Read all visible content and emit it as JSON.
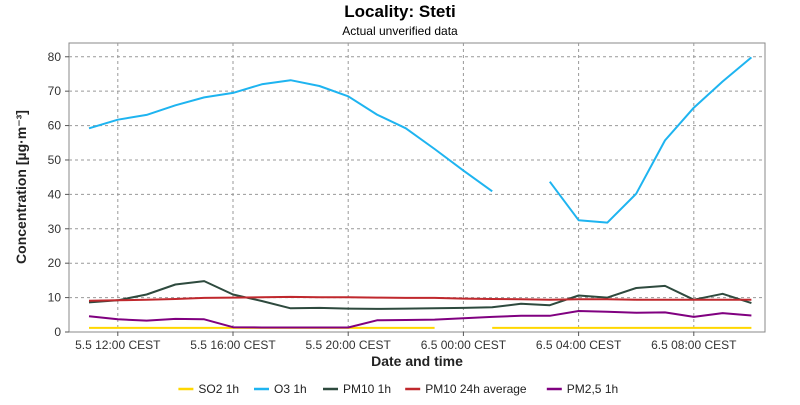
{
  "chart_data": {
    "type": "line",
    "title": "Locality: Steti",
    "subtitle": "Actual unverified data",
    "xlabel": "Date and time",
    "ylabel": "Concentration [µg·m⁻³]",
    "ylim": [
      0,
      84
    ],
    "yticks": [
      0,
      10,
      20,
      30,
      40,
      50,
      60,
      70,
      80
    ],
    "x": [
      "2024-05-05 11:00",
      "2024-05-05 12:00",
      "2024-05-05 13:00",
      "2024-05-05 14:00",
      "2024-05-05 15:00",
      "2024-05-05 16:00",
      "2024-05-05 17:00",
      "2024-05-05 18:00",
      "2024-05-05 19:00",
      "2024-05-05 20:00",
      "2024-05-05 21:00",
      "2024-05-05 22:00",
      "2024-05-05 23:00",
      "2024-05-06 00:00",
      "2024-05-06 01:00",
      "2024-05-06 02:00",
      "2024-05-06 03:00",
      "2024-05-06 04:00",
      "2024-05-06 05:00",
      "2024-05-06 06:00",
      "2024-05-06 07:00",
      "2024-05-06 08:00",
      "2024-05-06 09:00",
      "2024-05-06 10:00"
    ],
    "xticks": [
      {
        "x": "2024-05-05 12:00",
        "label": "5.5 12:00 CEST"
      },
      {
        "x": "2024-05-05 16:00",
        "label": "5.5 16:00 CEST"
      },
      {
        "x": "2024-05-05 20:00",
        "label": "5.5 20:00 CEST"
      },
      {
        "x": "2024-05-06 00:00",
        "label": "6.5 00:00 CEST"
      },
      {
        "x": "2024-05-06 04:00",
        "label": "6.5 04:00 CEST"
      },
      {
        "x": "2024-05-06 08:00",
        "label": "6.5 08:00 CEST"
      }
    ],
    "grid": true,
    "legend_position": "bottom",
    "series": [
      {
        "name": "SO2 1h",
        "color": "#FFD700",
        "values": [
          1.2,
          1.2,
          1.2,
          1.2,
          1.2,
          1.2,
          1.2,
          1.2,
          1.2,
          1.2,
          1.2,
          1.2,
          1.2,
          null,
          1.2,
          1.2,
          1.2,
          1.2,
          1.2,
          1.2,
          1.2,
          1.2,
          1.2,
          1.2
        ]
      },
      {
        "name": "O3 1h",
        "color": "#1EB4F0",
        "values": [
          59.2,
          61.7,
          63.1,
          65.9,
          68.2,
          69.5,
          72.0,
          73.2,
          71.5,
          68.5,
          63.2,
          59.2,
          53.2,
          46.9,
          40.9,
          null,
          43.7,
          32.5,
          31.8,
          40.2,
          55.7,
          65.2,
          72.8,
          79.8
        ]
      },
      {
        "name": "PM10 1h",
        "color": "#2E4A3E",
        "values": [
          8.6,
          9.2,
          10.9,
          13.8,
          14.8,
          10.9,
          9.0,
          6.9,
          7.0,
          6.8,
          6.7,
          6.8,
          6.9,
          7.0,
          7.2,
          8.2,
          7.8,
          10.6,
          10.0,
          12.8,
          13.4,
          9.4,
          11.1,
          8.4
        ]
      },
      {
        "name": "PM10 24h average",
        "color": "#C0282D",
        "values": [
          9.1,
          9.2,
          9.4,
          9.6,
          9.9,
          10.0,
          10.1,
          10.2,
          10.1,
          10.1,
          10.0,
          9.9,
          9.9,
          9.7,
          9.6,
          9.5,
          9.4,
          9.5,
          9.5,
          9.4,
          9.4,
          9.4,
          9.4,
          9.4
        ]
      },
      {
        "name": "PM2,5 1h",
        "color": "#800080",
        "values": [
          4.6,
          3.7,
          3.3,
          3.8,
          3.7,
          1.4,
          1.3,
          1.3,
          1.3,
          1.3,
          3.4,
          3.5,
          3.6,
          4.0,
          4.4,
          4.7,
          4.7,
          6.1,
          5.9,
          5.6,
          5.7,
          4.4,
          5.5,
          4.8
        ]
      }
    ]
  }
}
